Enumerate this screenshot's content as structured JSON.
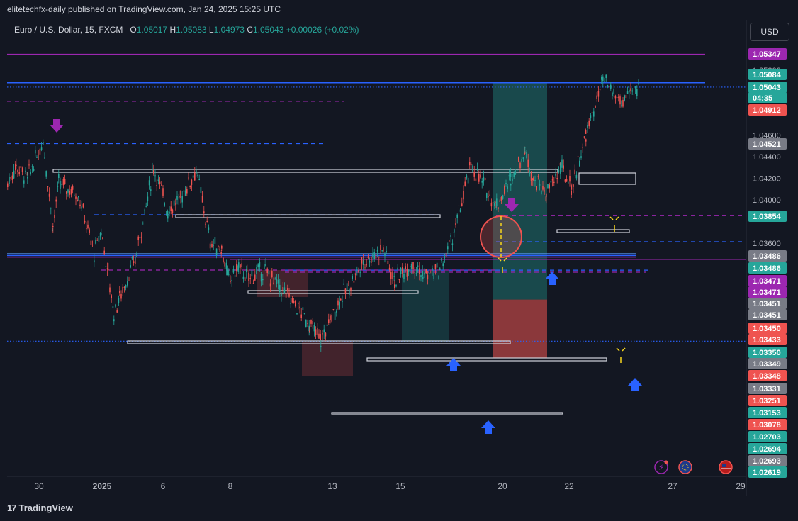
{
  "header": {
    "published": "elitetechfx-daily published on TradingView.com, Jan 24, 2025 15:25 UTC"
  },
  "symbol": {
    "name": "Euro / U.S. Dollar, 15, FXCM",
    "o_label": "O",
    "o_value": "1.05017",
    "h_label": "H",
    "h_value": "1.05083",
    "l_label": "L",
    "l_value": "1.04973",
    "c_label": "C",
    "c_value": "1.05043",
    "change": "+0.00026 (+0.02%)"
  },
  "currency_button": "USD",
  "footer": {
    "brand": "TradingView",
    "logo": "17"
  },
  "colors": {
    "background": "#131722",
    "up": "#26a69a",
    "down": "#ef5350",
    "purple": "#9c27b0",
    "blue": "#2962ff",
    "zone_green": "#26a69a",
    "zone_red": "#ef5350"
  },
  "chart_data": {
    "type": "candlestick",
    "symbol": "EURUSD",
    "timeframe": "15",
    "x_tick_labels": [
      "30",
      "2025",
      "6",
      "8",
      "13",
      "15",
      "20",
      "22",
      "27",
      "29"
    ],
    "y_tick_labels": [
      "1.05200",
      "1.04600",
      "1.04400",
      "1.04200",
      "1.04000",
      "1.03600"
    ],
    "y_ticks": [
      1.052,
      1.046,
      1.044,
      1.042,
      1.04,
      1.036
    ],
    "ylim": [
      1.0255,
      1.0555
    ],
    "price_path": [
      [
        "30",
        1.0415
      ],
      [
        "30",
        1.0432
      ],
      [
        "30",
        1.042
      ],
      [
        "30",
        1.0455
      ],
      [
        "30",
        1.0375
      ],
      [
        "30",
        1.0415
      ],
      [
        "30",
        1.0405
      ],
      [
        "2025",
        1.035
      ],
      [
        "2025",
        1.0372
      ],
      [
        "2025",
        1.033
      ],
      [
        "2025",
        1.0295
      ],
      [
        "2025",
        1.031
      ],
      [
        "6",
        1.0345
      ],
      [
        "6",
        1.043
      ],
      [
        "6",
        1.039
      ],
      [
        "6",
        1.04
      ],
      [
        "6",
        1.0428
      ],
      [
        "8",
        1.036
      ],
      [
        "8",
        1.0355
      ],
      [
        "8",
        1.0325
      ],
      [
        "8",
        1.0338
      ],
      [
        "8",
        1.0328
      ],
      [
        "8",
        1.0335
      ],
      [
        "13",
        1.03
      ],
      [
        "13",
        1.0285
      ],
      [
        "13",
        1.027
      ],
      [
        "13",
        1.031
      ],
      [
        "13",
        1.032
      ],
      [
        "15",
        1.0343
      ],
      [
        "15",
        1.0355
      ],
      [
        "15",
        1.0325
      ],
      [
        "15",
        1.0343
      ],
      [
        "15",
        1.033
      ],
      [
        "20",
        1.0335
      ],
      [
        "20",
        1.037
      ],
      [
        "20",
        1.0432
      ],
      [
        "20",
        1.0395
      ],
      [
        "22",
        1.042
      ],
      [
        "22",
        1.0445
      ],
      [
        "22",
        1.042
      ],
      [
        "22",
        1.0405
      ],
      [
        "22",
        1.043
      ],
      [
        "22",
        1.0412
      ],
      [
        "27",
        1.046
      ],
      [
        "27",
        1.051
      ],
      [
        "27",
        1.049
      ],
      [
        "27",
        1.05043
      ]
    ],
    "right_scale_labels": [
      {
        "text": "1.05347",
        "bg": "#9c27b0"
      },
      {
        "text": "1.05084",
        "bg": "#26a69a"
      },
      {
        "text": "1.05043",
        "bg": "#26a69a"
      },
      {
        "text": "04:35",
        "bg": "#26a69a"
      },
      {
        "text": "1.04912",
        "bg": "#ef5350"
      },
      {
        "text": "1.04521",
        "bg": "#787b86"
      },
      {
        "text": "1.03854",
        "bg": "#26a69a"
      },
      {
        "text": "1.03486",
        "bg": "#787b86"
      },
      {
        "text": "1.03486",
        "bg": "#26a69a"
      },
      {
        "text": "1.03471",
        "bg": "#9c27b0"
      },
      {
        "text": "1.03471",
        "bg": "#9c27b0"
      },
      {
        "text": "1.03451",
        "bg": "#787b86"
      },
      {
        "text": "1.03451",
        "bg": "#787b86"
      },
      {
        "text": "1.03450",
        "bg": "#ef5350"
      },
      {
        "text": "1.03433",
        "bg": "#ef5350"
      },
      {
        "text": "1.03350",
        "bg": "#26a69a"
      },
      {
        "text": "1.03349",
        "bg": "#787b86"
      },
      {
        "text": "1.03348",
        "bg": "#ef5350"
      },
      {
        "text": "1.03331",
        "bg": "#787b86"
      },
      {
        "text": "1.03251",
        "bg": "#ef5350"
      },
      {
        "text": "1.03153",
        "bg": "#26a69a"
      },
      {
        "text": "1.03078",
        "bg": "#ef5350"
      },
      {
        "text": "1.02703",
        "bg": "#26a69a"
      },
      {
        "text": "1.02694",
        "bg": "#26a69a"
      },
      {
        "text": "1.02693",
        "bg": "#787b86"
      },
      {
        "text": "1.02619",
        "bg": "#26a69a"
      }
    ],
    "levels": [
      {
        "name": "purple-top",
        "price": 1.05347,
        "color": "#9c27b0",
        "style": "solid"
      },
      {
        "name": "blue-high",
        "price": 1.05084,
        "color": "#2962ff",
        "style": "solid"
      },
      {
        "name": "blue-dotted-current",
        "price": 1.05043,
        "color": "#2962ff",
        "style": "dotted"
      },
      {
        "name": "purple-dashed",
        "price": 1.04912,
        "color": "#9c27b0",
        "style": "dashed"
      },
      {
        "name": "blue-dashed",
        "price": 1.04521,
        "color": "#2962ff",
        "style": "dashed"
      },
      {
        "name": "purple-dashed-2",
        "price": 1.03854,
        "color": "#9c27b0",
        "style": "dashed"
      },
      {
        "name": "blue-solid",
        "price": 1.03486,
        "color": "#2962ff",
        "style": "solid"
      },
      {
        "name": "purple-solid",
        "price": 1.03471,
        "color": "#9c27b0",
        "style": "solid"
      },
      {
        "name": "purple-mid",
        "price": 1.03451,
        "color": "#9c27b0",
        "style": "solid"
      },
      {
        "name": "blue-dashed-low",
        "price": 1.0335,
        "color": "#2962ff",
        "style": "dashed"
      },
      {
        "name": "purple-dashed-low",
        "price": 1.03331,
        "color": "#9c27b0",
        "style": "dashed"
      },
      {
        "name": "blue-dotted-bottom",
        "price": 1.02693,
        "color": "#2962ff",
        "style": "dotted"
      }
    ],
    "trade_position": {
      "entry": 1.03078,
      "target": 1.05084,
      "stop": 1.02619
    },
    "markers": [
      {
        "type": "arrow-down",
        "color": "#9c27b0",
        "label": ""
      },
      {
        "type": "arrow-down",
        "color": "#9c27b0",
        "label": ""
      },
      {
        "type": "arrow-up",
        "color": "#2962ff",
        "label": ""
      },
      {
        "type": "arrow-up",
        "color": "#2962ff",
        "label": ""
      },
      {
        "type": "arrow-up",
        "color": "#2962ff",
        "label": ""
      },
      {
        "type": "arrow-up",
        "color": "#2962ff",
        "label": ""
      }
    ],
    "grid": false,
    "legend": "none",
    "title": "",
    "xlabel": "",
    "ylabel": ""
  }
}
